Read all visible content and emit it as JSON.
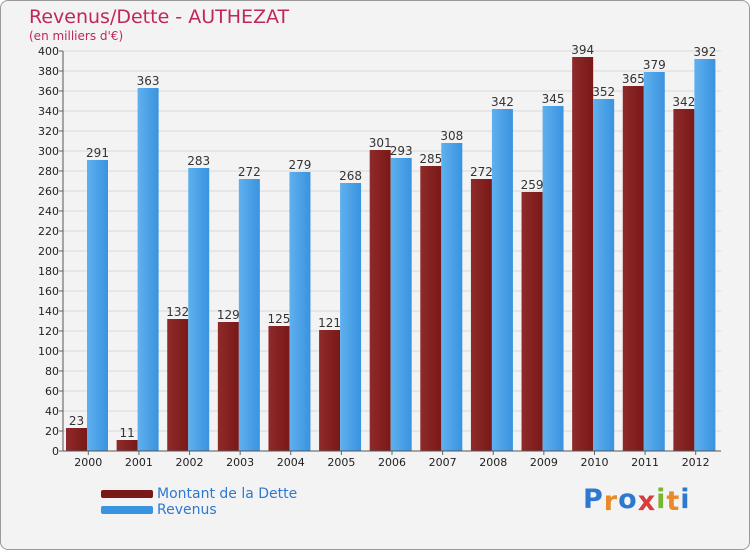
{
  "title": "Revenus/Dette - AUTHEZAT",
  "subtitle": "(en milliers d'€)",
  "colors": {
    "dette": "#7a1818",
    "revenus": "#3a93df",
    "title": "#c0265a"
  },
  "logo": {
    "letters": [
      "P",
      "r",
      "o",
      "x",
      "i",
      "t",
      "i"
    ],
    "colors": [
      "#2f78d0",
      "#e88a2a",
      "#2f78d0",
      "#d83c3c",
      "#79b82e",
      "#e88a2a",
      "#2f78d0"
    ]
  },
  "chart_data": {
    "type": "bar",
    "categories": [
      "2000",
      "2001",
      "2002",
      "2003",
      "2004",
      "2005",
      "2006",
      "2007",
      "2008",
      "2009",
      "2010",
      "2011",
      "2012"
    ],
    "series": [
      {
        "name": "Montant de la Dette",
        "values": [
          23,
          11,
          132,
          129,
          125,
          121,
          301,
          285,
          272,
          259,
          394,
          365,
          342
        ]
      },
      {
        "name": "Revenus",
        "values": [
          291,
          363,
          283,
          272,
          279,
          268,
          293,
          308,
          342,
          345,
          352,
          379,
          392
        ]
      }
    ],
    "ylim": [
      0,
      400
    ],
    "yticks": [
      0,
      20,
      40,
      60,
      80,
      100,
      120,
      140,
      160,
      180,
      200,
      220,
      240,
      260,
      280,
      300,
      320,
      340,
      360,
      380,
      400
    ],
    "grid": true,
    "legend": "bottom-left"
  }
}
